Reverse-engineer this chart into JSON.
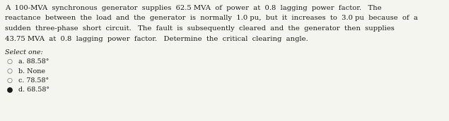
{
  "lines": [
    "A  100-MVA  synchronous  generator  supplies  62.5 MVA  of  power  at  0.8  lagging  power  factor.   The",
    "reactance  between  the  load  and  the  generator  is  normally  1.0 pu,  but  it  increases  to  3.0 pu  because  of  a",
    "sudden  three-phase  short  circuit.   The  fault  is  subsequently  cleared  and  the  generator  then  supplies",
    "43.75 MVA  at  0.8  lagging  power  factor.   Determine  the  critical  clearing  angle."
  ],
  "select_label": "Select one:",
  "options": [
    {
      "label": "a. 88.58°",
      "selected": false
    },
    {
      "label": "b. None",
      "selected": false
    },
    {
      "label": "c. 78.58°",
      "selected": false
    },
    {
      "label": "d. 68.58°",
      "selected": true
    }
  ],
  "bg_color": "#f5f5f0",
  "text_color": "#1a1a1a",
  "font_size_para": 7.2,
  "font_size_select": 6.8,
  "font_size_options": 6.8,
  "fig_width": 6.35,
  "fig_height": 1.72,
  "dpi": 100
}
